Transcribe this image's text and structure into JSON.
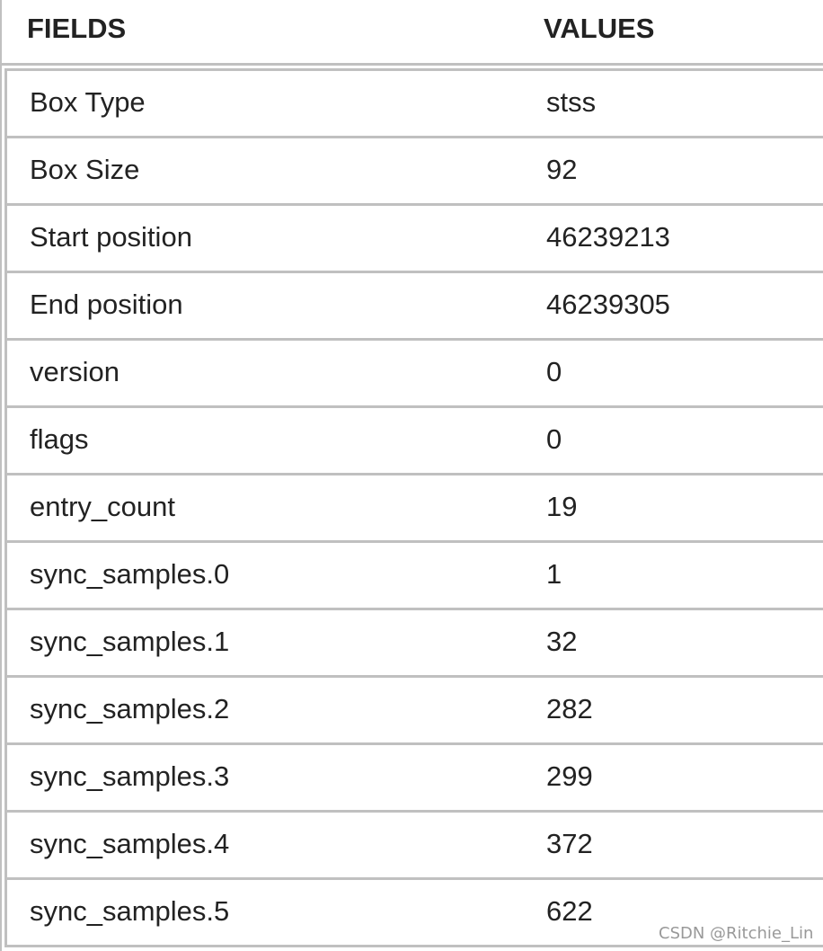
{
  "header": {
    "fields": "FIELDS",
    "values": "VALUES"
  },
  "rows": [
    {
      "field": "Box Type",
      "value": "stss"
    },
    {
      "field": "Box Size",
      "value": "92"
    },
    {
      "field": "Start position",
      "value": "46239213"
    },
    {
      "field": "End position",
      "value": "46239305"
    },
    {
      "field": "version",
      "value": "0"
    },
    {
      "field": "flags",
      "value": "0"
    },
    {
      "field": "entry_count",
      "value": "19"
    },
    {
      "field": "sync_samples.0",
      "value": "1"
    },
    {
      "field": "sync_samples.1",
      "value": "32"
    },
    {
      "field": "sync_samples.2",
      "value": "282"
    },
    {
      "field": "sync_samples.3",
      "value": "299"
    },
    {
      "field": "sync_samples.4",
      "value": "372"
    },
    {
      "field": "sync_samples.5",
      "value": "622"
    }
  ],
  "watermark": "CSDN @Ritchie_Lin"
}
